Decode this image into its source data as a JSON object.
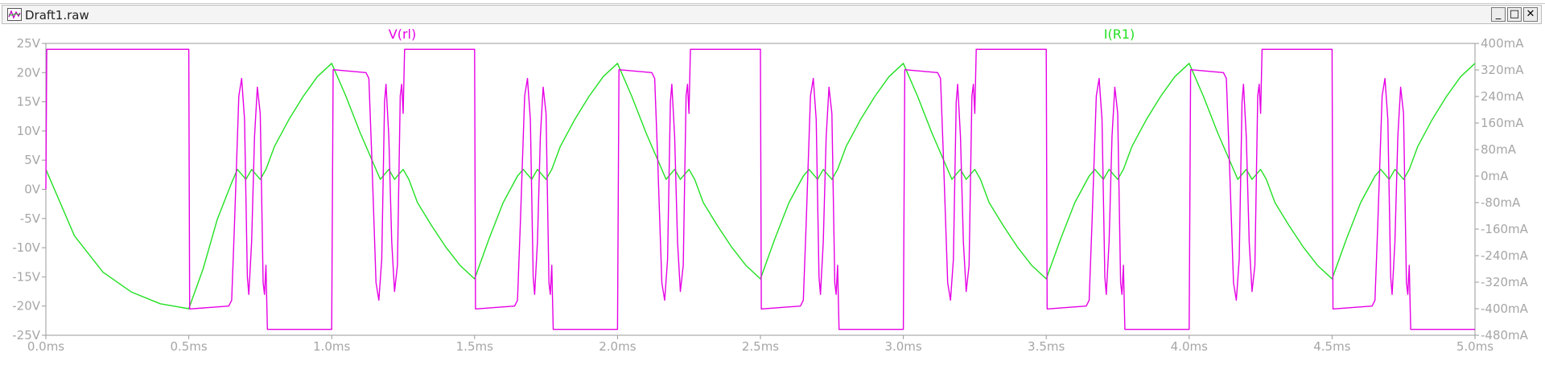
{
  "window": {
    "title": "Draft1.raw",
    "minimize_label": "_",
    "maximize_label": "□",
    "close_label": "✕",
    "icon": "waveform-icon"
  },
  "colors": {
    "v_trace": "#e600e6",
    "i_trace": "#22e022",
    "axis": "#9a9a9a",
    "tick_text": "#a6a6a6"
  },
  "chart_data": {
    "type": "line",
    "title": "",
    "xlabel": "",
    "ylabel": "",
    "grid": false,
    "x_ticks": [
      "0.0ms",
      "0.5ms",
      "1.0ms",
      "1.5ms",
      "2.0ms",
      "2.5ms",
      "3.0ms",
      "3.5ms",
      "4.0ms",
      "4.5ms",
      "5.0ms"
    ],
    "y_left_ticks": [
      "25V",
      "20V",
      "15V",
      "10V",
      "5V",
      "0V",
      "-5V",
      "-10V",
      "-15V",
      "-20V",
      "-25V"
    ],
    "y_right_ticks": [
      "400mA",
      "320mA",
      "240mA",
      "160mA",
      "80mA",
      "0mA",
      "-80mA",
      "-160mA",
      "-240mA",
      "-320mA",
      "-400mA",
      "-480mA"
    ],
    "xlim": [
      0,
      5
    ],
    "ylim_left": [
      -25,
      25
    ],
    "ylim_right": [
      -480,
      400
    ],
    "series": [
      {
        "name": "V(rl)",
        "axis": "left",
        "unit": "V",
        "points": [
          [
            0,
            0
          ],
          [
            0.003,
            24
          ],
          [
            0.5,
            24
          ],
          [
            0.503,
            -20.5
          ],
          [
            0.64,
            -20
          ],
          [
            0.65,
            -19
          ],
          [
            0.66,
            -6
          ],
          [
            0.675,
            16
          ],
          [
            0.685,
            19
          ],
          [
            0.695,
            12
          ],
          [
            0.705,
            -15
          ],
          [
            0.71,
            -18
          ],
          [
            0.72,
            -9
          ],
          [
            0.73,
            9
          ],
          [
            0.74,
            17.5
          ],
          [
            0.75,
            13
          ],
          [
            0.76,
            -16
          ],
          [
            0.765,
            -18
          ],
          [
            0.77,
            -13
          ],
          [
            0.775,
            -24
          ],
          [
            1.0,
            -24
          ],
          [
            1.005,
            20.5
          ],
          [
            1.12,
            20
          ],
          [
            1.13,
            19
          ],
          [
            1.14,
            6
          ],
          [
            1.155,
            -16
          ],
          [
            1.165,
            -19
          ],
          [
            1.175,
            -12
          ],
          [
            1.185,
            15
          ],
          [
            1.19,
            18
          ],
          [
            1.2,
            9
          ],
          [
            1.21,
            -9
          ],
          [
            1.22,
            -17.5
          ],
          [
            1.23,
            -13
          ],
          [
            1.24,
            16
          ],
          [
            1.245,
            18
          ],
          [
            1.25,
            13
          ],
          [
            1.255,
            24
          ],
          [
            1.5,
            24
          ],
          [
            1.503,
            -20.5
          ],
          [
            1.64,
            -20
          ],
          [
            1.65,
            -19
          ],
          [
            1.66,
            -6
          ],
          [
            1.675,
            16
          ],
          [
            1.685,
            19
          ],
          [
            1.695,
            12
          ],
          [
            1.705,
            -15
          ],
          [
            1.71,
            -18
          ],
          [
            1.72,
            -9
          ],
          [
            1.73,
            9
          ],
          [
            1.74,
            17.5
          ],
          [
            1.75,
            13
          ],
          [
            1.76,
            -16
          ],
          [
            1.765,
            -18
          ],
          [
            1.77,
            -13
          ],
          [
            1.775,
            -24
          ],
          [
            2.0,
            -24
          ],
          [
            2.005,
            20.5
          ],
          [
            2.12,
            20
          ],
          [
            2.13,
            19
          ],
          [
            2.14,
            6
          ],
          [
            2.155,
            -16
          ],
          [
            2.165,
            -19
          ],
          [
            2.175,
            -12
          ],
          [
            2.185,
            15
          ],
          [
            2.19,
            18
          ],
          [
            2.2,
            9
          ],
          [
            2.21,
            -9
          ],
          [
            2.22,
            -17.5
          ],
          [
            2.23,
            -13
          ],
          [
            2.24,
            16
          ],
          [
            2.245,
            18
          ],
          [
            2.25,
            13
          ],
          [
            2.255,
            24
          ],
          [
            2.5,
            24
          ],
          [
            2.503,
            -20.5
          ],
          [
            2.64,
            -20
          ],
          [
            2.65,
            -19
          ],
          [
            2.66,
            -6
          ],
          [
            2.675,
            16
          ],
          [
            2.685,
            19
          ],
          [
            2.695,
            12
          ],
          [
            2.705,
            -15
          ],
          [
            2.71,
            -18
          ],
          [
            2.72,
            -9
          ],
          [
            2.73,
            9
          ],
          [
            2.74,
            17.5
          ],
          [
            2.75,
            13
          ],
          [
            2.76,
            -16
          ],
          [
            2.765,
            -18
          ],
          [
            2.77,
            -13
          ],
          [
            2.775,
            -24
          ],
          [
            3.0,
            -24
          ],
          [
            3.005,
            20.5
          ],
          [
            3.12,
            20
          ],
          [
            3.13,
            19
          ],
          [
            3.14,
            6
          ],
          [
            3.155,
            -16
          ],
          [
            3.165,
            -19
          ],
          [
            3.175,
            -12
          ],
          [
            3.185,
            15
          ],
          [
            3.19,
            18
          ],
          [
            3.2,
            9
          ],
          [
            3.21,
            -9
          ],
          [
            3.22,
            -17.5
          ],
          [
            3.23,
            -13
          ],
          [
            3.24,
            16
          ],
          [
            3.245,
            18
          ],
          [
            3.25,
            13
          ],
          [
            3.255,
            24
          ],
          [
            3.5,
            24
          ],
          [
            3.503,
            -20.5
          ],
          [
            3.64,
            -20
          ],
          [
            3.65,
            -19
          ],
          [
            3.66,
            -6
          ],
          [
            3.675,
            16
          ],
          [
            3.685,
            19
          ],
          [
            3.695,
            12
          ],
          [
            3.705,
            -15
          ],
          [
            3.71,
            -18
          ],
          [
            3.72,
            -9
          ],
          [
            3.73,
            9
          ],
          [
            3.74,
            17.5
          ],
          [
            3.75,
            13
          ],
          [
            3.76,
            -16
          ],
          [
            3.765,
            -18
          ],
          [
            3.77,
            -13
          ],
          [
            3.775,
            -24
          ],
          [
            4.0,
            -24
          ],
          [
            4.005,
            20.5
          ],
          [
            4.12,
            20
          ],
          [
            4.13,
            19
          ],
          [
            4.14,
            6
          ],
          [
            4.155,
            -16
          ],
          [
            4.165,
            -19
          ],
          [
            4.175,
            -12
          ],
          [
            4.185,
            15
          ],
          [
            4.19,
            18
          ],
          [
            4.2,
            9
          ],
          [
            4.21,
            -9
          ],
          [
            4.22,
            -17.5
          ],
          [
            4.23,
            -13
          ],
          [
            4.24,
            16
          ],
          [
            4.245,
            18
          ],
          [
            4.25,
            13
          ],
          [
            4.255,
            24
          ],
          [
            4.5,
            24
          ],
          [
            4.503,
            -20.5
          ],
          [
            4.64,
            -20
          ],
          [
            4.65,
            -19
          ],
          [
            4.66,
            -6
          ],
          [
            4.675,
            16
          ],
          [
            4.685,
            19
          ],
          [
            4.695,
            12
          ],
          [
            4.705,
            -15
          ],
          [
            4.71,
            -18
          ],
          [
            4.72,
            -9
          ],
          [
            4.73,
            9
          ],
          [
            4.74,
            17.5
          ],
          [
            4.75,
            13
          ],
          [
            4.76,
            -16
          ],
          [
            4.765,
            -18
          ],
          [
            4.77,
            -13
          ],
          [
            4.775,
            -24
          ],
          [
            5.0,
            -24
          ]
        ]
      },
      {
        "name": "I(R1)",
        "axis": "right",
        "unit": "mA",
        "points": [
          [
            0,
            20
          ],
          [
            0.1,
            -180
          ],
          [
            0.2,
            -290
          ],
          [
            0.3,
            -350
          ],
          [
            0.4,
            -385
          ],
          [
            0.5,
            -400
          ],
          [
            0.55,
            -280
          ],
          [
            0.6,
            -130
          ],
          [
            0.65,
            -20
          ],
          [
            0.67,
            20
          ],
          [
            0.7,
            -10
          ],
          [
            0.72,
            20
          ],
          [
            0.75,
            -10
          ],
          [
            0.77,
            20
          ],
          [
            0.8,
            90
          ],
          [
            0.85,
            170
          ],
          [
            0.9,
            240
          ],
          [
            0.95,
            300
          ],
          [
            1.0,
            340
          ],
          [
            1.05,
            240
          ],
          [
            1.1,
            130
          ],
          [
            1.15,
            30
          ],
          [
            1.17,
            -10
          ],
          [
            1.2,
            20
          ],
          [
            1.22,
            -10
          ],
          [
            1.25,
            20
          ],
          [
            1.27,
            -10
          ],
          [
            1.3,
            -80
          ],
          [
            1.35,
            -150
          ],
          [
            1.4,
            -215
          ],
          [
            1.45,
            -270
          ],
          [
            1.5,
            -310
          ],
          [
            1.55,
            -190
          ],
          [
            1.6,
            -80
          ],
          [
            1.65,
            0
          ],
          [
            1.67,
            20
          ],
          [
            1.7,
            -10
          ],
          [
            1.72,
            20
          ],
          [
            1.75,
            -10
          ],
          [
            1.77,
            20
          ],
          [
            1.8,
            90
          ],
          [
            1.85,
            170
          ],
          [
            1.9,
            240
          ],
          [
            1.95,
            300
          ],
          [
            2.0,
            340
          ],
          [
            2.05,
            240
          ],
          [
            2.1,
            130
          ],
          [
            2.15,
            30
          ],
          [
            2.17,
            -10
          ],
          [
            2.2,
            20
          ],
          [
            2.22,
            -10
          ],
          [
            2.25,
            20
          ],
          [
            2.27,
            -10
          ],
          [
            2.3,
            -80
          ],
          [
            2.35,
            -150
          ],
          [
            2.4,
            -215
          ],
          [
            2.45,
            -270
          ],
          [
            2.5,
            -310
          ],
          [
            2.55,
            -190
          ],
          [
            2.6,
            -80
          ],
          [
            2.65,
            0
          ],
          [
            2.67,
            20
          ],
          [
            2.7,
            -10
          ],
          [
            2.72,
            20
          ],
          [
            2.75,
            -10
          ],
          [
            2.77,
            20
          ],
          [
            2.8,
            90
          ],
          [
            2.85,
            170
          ],
          [
            2.9,
            240
          ],
          [
            2.95,
            300
          ],
          [
            3.0,
            340
          ],
          [
            3.05,
            240
          ],
          [
            3.1,
            130
          ],
          [
            3.15,
            30
          ],
          [
            3.17,
            -10
          ],
          [
            3.2,
            20
          ],
          [
            3.22,
            -10
          ],
          [
            3.25,
            20
          ],
          [
            3.27,
            -10
          ],
          [
            3.3,
            -80
          ],
          [
            3.35,
            -150
          ],
          [
            3.4,
            -215
          ],
          [
            3.45,
            -270
          ],
          [
            3.5,
            -310
          ],
          [
            3.55,
            -190
          ],
          [
            3.6,
            -80
          ],
          [
            3.65,
            0
          ],
          [
            3.67,
            20
          ],
          [
            3.7,
            -10
          ],
          [
            3.72,
            20
          ],
          [
            3.75,
            -10
          ],
          [
            3.77,
            20
          ],
          [
            3.8,
            90
          ],
          [
            3.85,
            170
          ],
          [
            3.9,
            240
          ],
          [
            3.95,
            300
          ],
          [
            4.0,
            340
          ],
          [
            4.05,
            240
          ],
          [
            4.1,
            130
          ],
          [
            4.15,
            30
          ],
          [
            4.17,
            -10
          ],
          [
            4.2,
            20
          ],
          [
            4.22,
            -10
          ],
          [
            4.25,
            20
          ],
          [
            4.27,
            -10
          ],
          [
            4.3,
            -80
          ],
          [
            4.35,
            -150
          ],
          [
            4.4,
            -215
          ],
          [
            4.45,
            -270
          ],
          [
            4.5,
            -310
          ],
          [
            4.55,
            -190
          ],
          [
            4.6,
            -80
          ],
          [
            4.65,
            0
          ],
          [
            4.67,
            20
          ],
          [
            4.7,
            -10
          ],
          [
            4.72,
            20
          ],
          [
            4.75,
            -10
          ],
          [
            4.77,
            20
          ],
          [
            4.8,
            90
          ],
          [
            4.85,
            170
          ],
          [
            4.9,
            240
          ],
          [
            4.95,
            300
          ],
          [
            5.0,
            340
          ]
        ]
      }
    ]
  }
}
